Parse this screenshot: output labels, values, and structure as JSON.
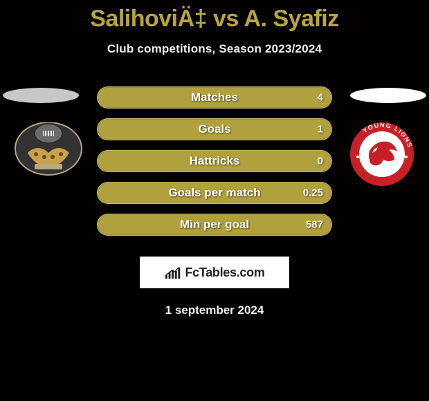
{
  "title": {
    "player1": "SalihoviÄ‡",
    "vs": "vs",
    "player2": "A. Syafiz",
    "player1_color": "#b7a63e",
    "player2_color": "#b7a63e"
  },
  "subtitle": "Club competitions, Season 2023/2024",
  "stats": {
    "bar_color": "#b0a13e",
    "rows": [
      {
        "label": "Matches",
        "right": "4"
      },
      {
        "label": "Goals",
        "right": "1"
      },
      {
        "label": "Hattricks",
        "right": "0"
      },
      {
        "label": "Goals per match",
        "right": "0.25"
      },
      {
        "label": "Min per goal",
        "right": "587"
      }
    ]
  },
  "side_ovals": {
    "left_color": "#c7c7c7",
    "right_color": "#ffffff"
  },
  "badges": {
    "left": {
      "name": "club-badge-left",
      "shield_fill": "#323232",
      "shield_stroke": "#b8a97e",
      "pattern_color": "#c9a24a"
    },
    "right": {
      "name": "club-badge-right",
      "outer_ring": "#c62127",
      "inner_fill": "#ffffff",
      "lion_color": "#c62127",
      "ring_text": "YOUNG LIONS",
      "ring_text_color": "#ffffff"
    }
  },
  "brand": {
    "text": "FcTables.com",
    "bars": [
      {
        "x": 2,
        "y": 16,
        "w": 3.2,
        "h": 6
      },
      {
        "x": 7,
        "y": 12,
        "w": 3.2,
        "h": 10
      },
      {
        "x": 12,
        "y": 8,
        "w": 3.2,
        "h": 14
      },
      {
        "x": 17,
        "y": 10,
        "w": 3.2,
        "h": 12
      },
      {
        "x": 22,
        "y": 4,
        "w": 3.2,
        "h": 18
      }
    ],
    "line_points": "2,17 7,13 12,9 17,11 22,5",
    "icon_color": "#222222"
  },
  "date": "1 september 2024",
  "colors": {
    "background": "#030000",
    "text": "#ffffff",
    "subtitle": "#f0f0f0"
  }
}
